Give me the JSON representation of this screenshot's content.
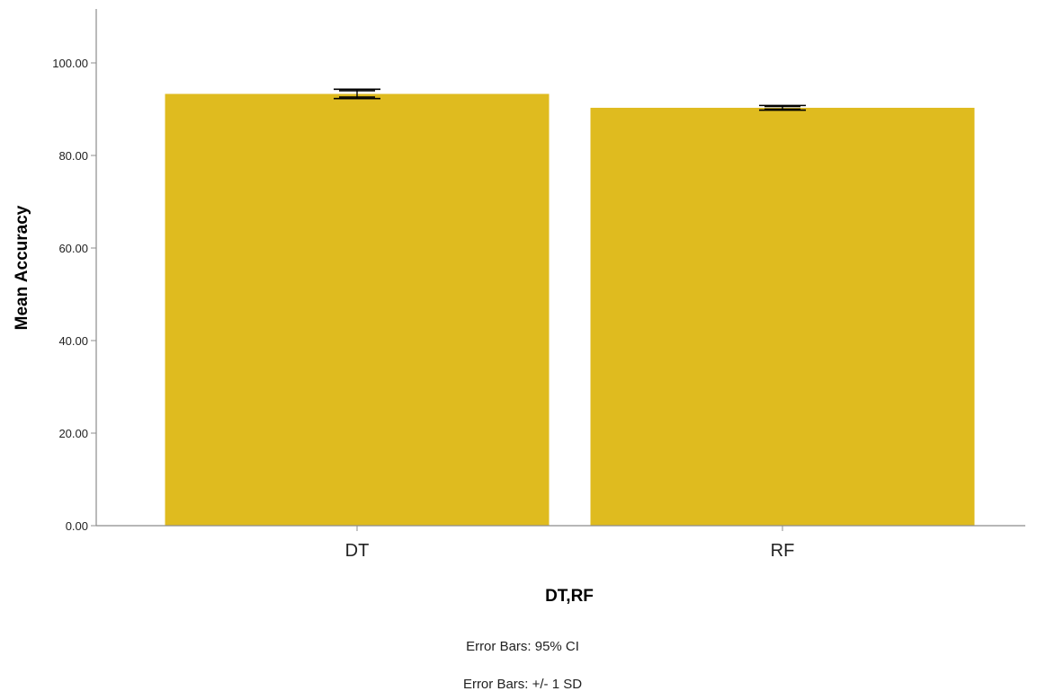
{
  "chart_data": {
    "type": "bar",
    "categories": [
      "DT",
      "RF"
    ],
    "values": [
      93.3,
      90.3
    ],
    "error_bars": {
      "ci95": [
        [
          92.3,
          94.3
        ],
        [
          89.8,
          90.8
        ]
      ],
      "sd": [
        [
          92.6,
          94.0
        ],
        [
          90.0,
          90.6
        ]
      ]
    },
    "xlabel": "DT,RF",
    "ylabel": "Mean Accuracy",
    "ylim": [
      0,
      110
    ],
    "yticks": [
      "0.00",
      "20.00",
      "40.00",
      "60.00",
      "80.00",
      "100.00"
    ],
    "ytick_values": [
      0,
      20,
      40,
      60,
      80,
      100
    ],
    "bar_color": "#dfbb1f",
    "error_bar_color": "#000000",
    "grid": false,
    "notes": [
      "Error Bars: 95% CI",
      "Error Bars: +/- 1 SD"
    ]
  }
}
